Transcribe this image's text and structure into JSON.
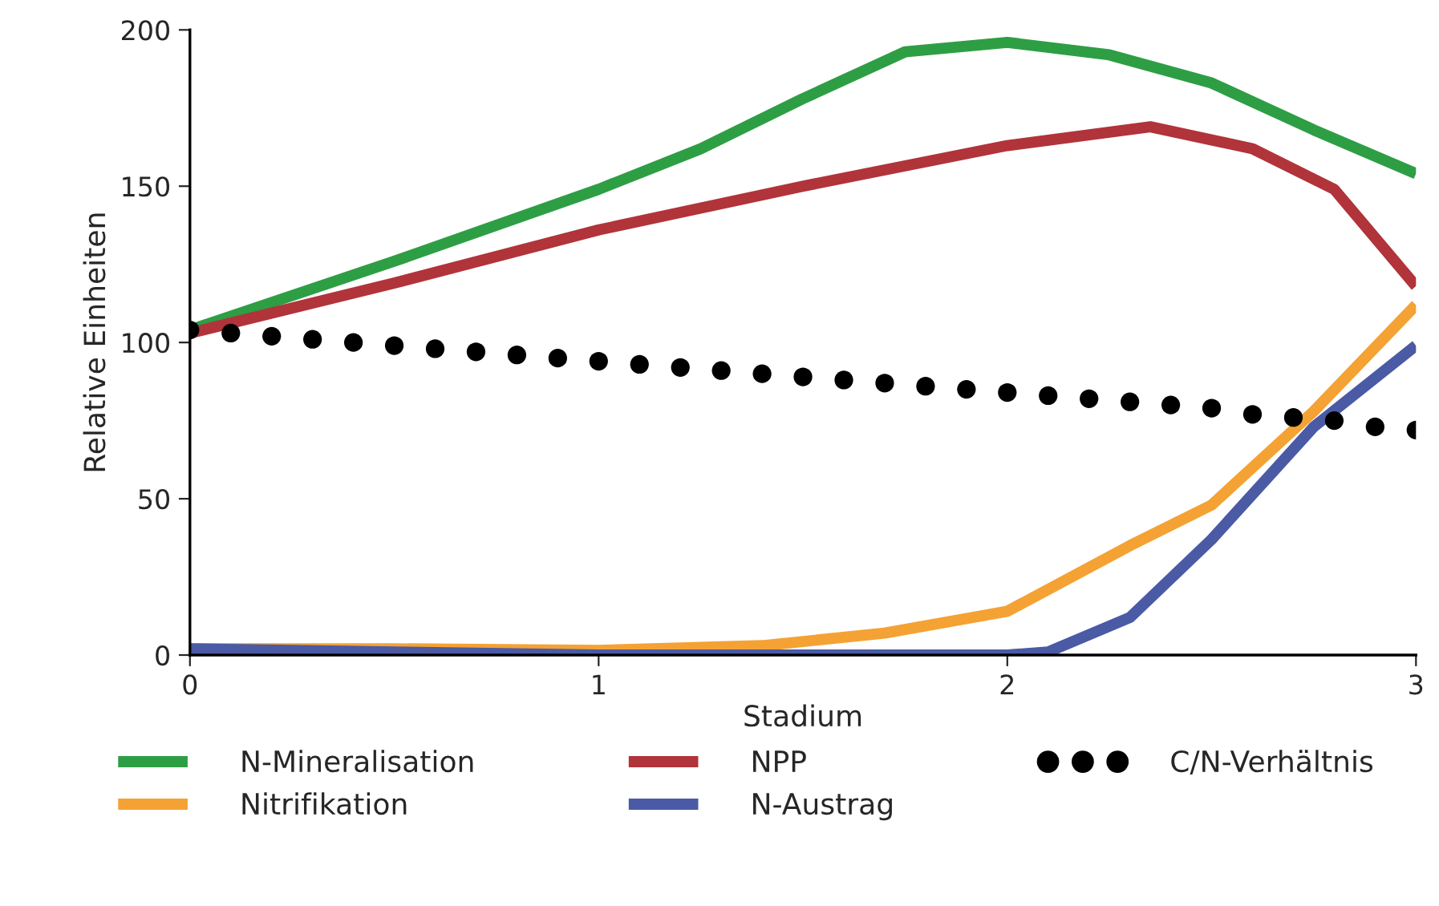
{
  "chart_data": {
    "type": "line",
    "xlabel": "Stadium",
    "ylabel": "Relative Einheiten",
    "xlim": [
      0,
      3
    ],
    "xticks": [
      0,
      1,
      2,
      3
    ],
    "ylim": [
      0,
      200
    ],
    "yticks": [
      0,
      50,
      100,
      150,
      200
    ],
    "grid": false,
    "legend": "bottom",
    "line_style": "solid",
    "marker": "none",
    "series": [
      {
        "name": "N-Mineralisation",
        "color": "#2e9e44",
        "x": [
          0,
          0.5,
          1,
          1.25,
          1.5,
          1.75,
          2,
          2.25,
          2.5,
          2.75,
          3
        ],
        "values": [
          104,
          126,
          149,
          162,
          178,
          193,
          196,
          192,
          183,
          168,
          154
        ]
      },
      {
        "name": "Nitrifikation",
        "color": "#f4a234",
        "x": [
          0,
          0.5,
          1,
          1.4,
          1.7,
          2,
          2.3,
          2.5,
          2.75,
          3
        ],
        "values": [
          2,
          2,
          1.5,
          3,
          7,
          14,
          35,
          48,
          78,
          112
        ]
      },
      {
        "name": "NPP",
        "color": "#b0343a",
        "x": [
          0,
          0.5,
          1,
          1.5,
          2,
          2.35,
          2.6,
          2.8,
          3
        ],
        "values": [
          103,
          119,
          136,
          150,
          163,
          169,
          162,
          149,
          118
        ]
      },
      {
        "name": "N-Austrag",
        "color": "#4a5aa5",
        "x": [
          0,
          0.5,
          1,
          1.5,
          2,
          2.1,
          2.3,
          2.5,
          2.75,
          3
        ],
        "values": [
          2,
          1,
          0,
          0,
          0,
          1,
          12,
          37,
          73,
          99
        ]
      },
      {
        "name": "C/N-Verhältnis",
        "type": "scatter",
        "marker": "circle",
        "color": "#000000",
        "x": [
          0,
          0.1,
          0.2,
          0.3,
          0.4,
          0.5,
          0.6,
          0.7,
          0.8,
          0.9,
          1,
          1.1,
          1.2,
          1.3,
          1.4,
          1.5,
          1.6,
          1.7,
          1.8,
          1.9,
          2,
          2.1,
          2.2,
          2.3,
          2.4,
          2.5,
          2.6,
          2.7,
          2.8,
          2.9,
          3
        ],
        "values": [
          104,
          103,
          102,
          101,
          100,
          99,
          98,
          97,
          96,
          95,
          94,
          93,
          92,
          91,
          90,
          89,
          88,
          87,
          86,
          85,
          84,
          83,
          82,
          81,
          80,
          79,
          77,
          76,
          75,
          73,
          72
        ]
      }
    ]
  }
}
